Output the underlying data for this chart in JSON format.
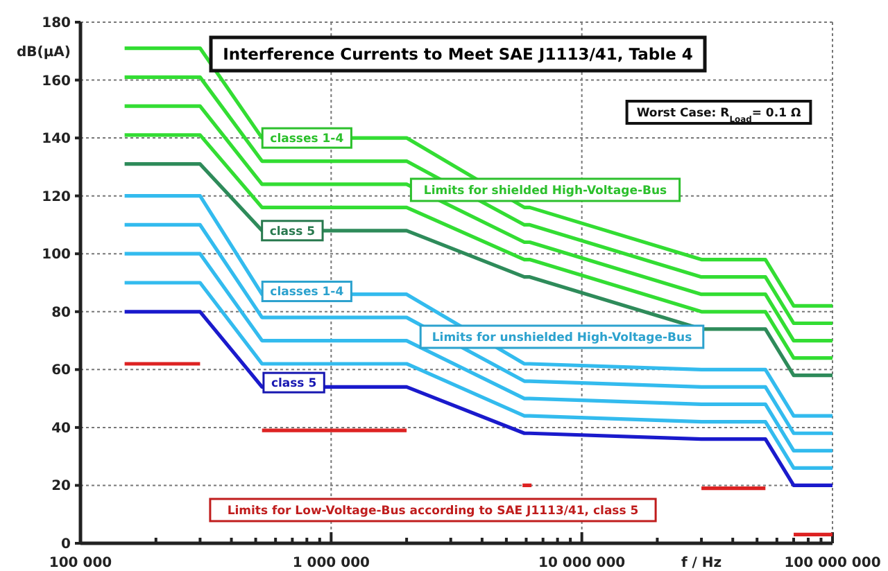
{
  "chart_data": {
    "type": "line",
    "title": "Interference Currents to Meet SAE J1113/41, Table 4",
    "xlabel": "f / Hz",
    "ylabel": "dB(μA)",
    "log": "x",
    "grid": true,
    "marker": "none",
    "line_style": "solid",
    "x": [
      150000,
      300000,
      530000,
      2000000,
      5900000,
      6200000,
      30000000,
      54000000,
      70000000,
      100000000
    ],
    "xlim": [
      100000,
      100000000
    ],
    "xticks": [
      {
        "value": 100000,
        "label": "100 000"
      },
      {
        "value": 200000,
        "label": null
      },
      {
        "value": 300000,
        "label": null
      },
      {
        "value": 400000,
        "label": null
      },
      {
        "value": 500000,
        "label": null
      },
      {
        "value": 600000,
        "label": null
      },
      {
        "value": 700000,
        "label": null
      },
      {
        "value": 800000,
        "label": null
      },
      {
        "value": 900000,
        "label": null
      },
      {
        "value": 1000000,
        "label": "1 000 000"
      },
      {
        "value": 2000000,
        "label": null
      },
      {
        "value": 3000000,
        "label": null
      },
      {
        "value": 4000000,
        "label": null
      },
      {
        "value": 5000000,
        "label": null
      },
      {
        "value": 6000000,
        "label": null
      },
      {
        "value": 7000000,
        "label": null
      },
      {
        "value": 8000000,
        "label": null
      },
      {
        "value": 9000000,
        "label": null
      },
      {
        "value": 10000000,
        "label": "10 000 000"
      },
      {
        "value": 20000000,
        "label": null
      },
      {
        "value": 30000000,
        "label": null
      },
      {
        "value": 40000000,
        "label": null
      },
      {
        "value": 50000000,
        "label": null
      },
      {
        "value": 60000000,
        "label": null
      },
      {
        "value": 70000000,
        "label": null
      },
      {
        "value": 80000000,
        "label": null
      },
      {
        "value": 90000000,
        "label": null
      },
      {
        "value": 100000000,
        "label": "100 000 000"
      }
    ],
    "ylim": [
      0,
      180
    ],
    "yticks": [
      0,
      20,
      40,
      60,
      80,
      100,
      120,
      140,
      160,
      180
    ],
    "series": [
      {
        "color": "#33dd33",
        "values": [
          171,
          171,
          140,
          140,
          116,
          116,
          98,
          98,
          82,
          82
        ]
      },
      {
        "color": "#33dd33",
        "values": [
          161,
          161,
          132,
          132,
          110,
          110,
          92,
          92,
          76,
          76
        ]
      },
      {
        "color": "#33dd33",
        "values": [
          151,
          151,
          124,
          124,
          104,
          104,
          86,
          86,
          70,
          70
        ]
      },
      {
        "color": "#33dd33",
        "values": [
          141,
          141,
          116,
          116,
          98,
          98,
          80,
          80,
          64,
          64
        ]
      },
      {
        "color": "#2e8b5a",
        "values": [
          131,
          131,
          108,
          108,
          92,
          92,
          74,
          74,
          58,
          58
        ]
      },
      {
        "color": "#33bbee",
        "values": [
          120,
          120,
          86,
          86,
          62,
          62,
          60,
          60,
          44,
          44
        ]
      },
      {
        "color": "#33bbee",
        "values": [
          110,
          110,
          78,
          78,
          56,
          56,
          54,
          54,
          38,
          38
        ]
      },
      {
        "color": "#33bbee",
        "values": [
          100,
          100,
          70,
          70,
          50,
          50,
          48,
          48,
          32,
          32
        ]
      },
      {
        "color": "#33bbee",
        "values": [
          90,
          90,
          62,
          62,
          44,
          44,
          42,
          42,
          26,
          26
        ]
      },
      {
        "color": "#1a1acc",
        "values": [
          80,
          80,
          54,
          54,
          38,
          38,
          36,
          36,
          20,
          20
        ]
      },
      {
        "color": "#dd2222",
        "x": [
          150000,
          300000,
          400000,
          530000,
          2000000,
          3000000,
          5800000,
          6300000,
          10000000,
          30000000,
          54000000,
          60000000,
          70000000,
          100000000
        ],
        "values": [
          62,
          62,
          null,
          39,
          39,
          null,
          20,
          20,
          null,
          19,
          19,
          null,
          3,
          3
        ]
      }
    ],
    "annotations": [
      {
        "text": "classes 1-4",
        "x": 800000,
        "y": 140
      },
      {
        "text": "class 5",
        "x": 700000,
        "y": 108
      },
      "Limits for shielded High-Voltage-Bus",
      {
        "text": "classes 1-4",
        "x": 800000,
        "y": 87
      },
      "Limits for unshielded High-Voltage-Bus",
      {
        "text": "class 5",
        "x": 710000,
        "y": 55.5
      },
      "Limits for Low-Voltage-Bus according to SAE J1113/41, class 5",
      "Worst Case: R$_{Load}$= 0.1 Ω"
    ]
  }
}
